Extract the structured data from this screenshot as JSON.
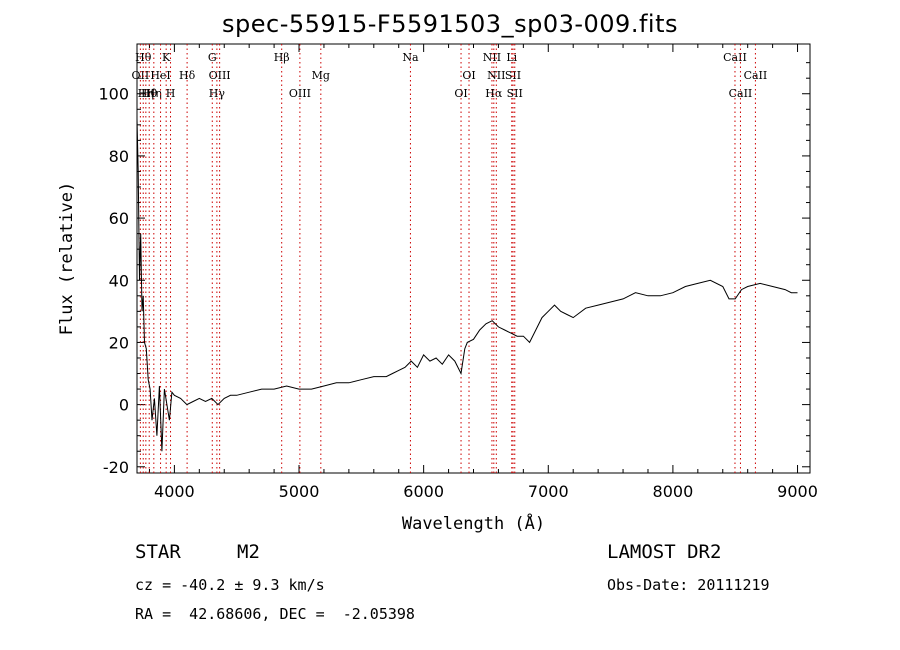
{
  "header": {
    "title": "spec-55915-F5591503_sp03-009.fits"
  },
  "info": {
    "class_label": "STAR",
    "subclass": "M2",
    "survey": "LAMOST DR2",
    "cz": "cz = -40.2 ± 9.3 km/s",
    "obs_date": "Obs-Date: 20111219",
    "radec": "RA =  42.68606, DEC =  -2.05398"
  },
  "chart_data": {
    "type": "line",
    "title": "spec-55915-F5591503_sp03-009.fits",
    "xlabel": "Wavelength (Å)",
    "ylabel": "Flux (relative)",
    "xlim": [
      3700,
      9100
    ],
    "ylim": [
      -22,
      116
    ],
    "xticks": [
      4000,
      5000,
      6000,
      7000,
      8000,
      9000
    ],
    "yticks": [
      -20,
      0,
      20,
      40,
      60,
      80,
      100
    ],
    "grid": false,
    "line_color": "#000000",
    "marker_color": "#cc0000",
    "series": [
      {
        "x": [
          3700,
          3710,
          3720,
          3730,
          3740,
          3750,
          3760,
          3775,
          3790,
          3805,
          3820,
          3840,
          3860,
          3880,
          3900,
          3920,
          3940,
          3960,
          3980,
          4000,
          4050,
          4100,
          4150,
          4200,
          4250,
          4300,
          4350,
          4400,
          4450,
          4500,
          4600,
          4700,
          4800,
          4900,
          5000,
          5100,
          5200,
          5300,
          5400,
          5500,
          5600,
          5700,
          5750,
          5800,
          5850,
          5900,
          5950,
          6000,
          6050,
          6100,
          6150,
          6200,
          6250,
          6300,
          6330,
          6350,
          6400,
          6450,
          6500,
          6550,
          6600,
          6650,
          6700,
          6750,
          6800,
          6850,
          6900,
          6950,
          7000,
          7050,
          7100,
          7150,
          7200,
          7300,
          7400,
          7500,
          7600,
          7700,
          7800,
          7900,
          8000,
          8100,
          8200,
          8300,
          8400,
          8450,
          8500,
          8550,
          8600,
          8700,
          8800,
          8900,
          8950,
          9000
        ],
        "y": [
          92,
          75,
          40,
          55,
          30,
          35,
          20,
          18,
          8,
          5,
          -5,
          2,
          -10,
          6,
          -15,
          5,
          0,
          -5,
          4,
          3,
          2,
          0,
          1,
          2,
          1,
          2,
          0,
          2,
          3,
          3,
          4,
          5,
          5,
          6,
          5,
          5,
          6,
          7,
          7,
          8,
          9,
          9,
          10,
          11,
          12,
          14,
          12,
          16,
          14,
          15,
          13,
          16,
          14,
          10,
          18,
          20,
          21,
          24,
          26,
          27,
          25,
          24,
          23,
          22,
          22,
          20,
          24,
          28,
          30,
          32,
          30,
          29,
          28,
          31,
          32,
          33,
          34,
          36,
          35,
          35,
          36,
          38,
          39,
          40,
          38,
          34,
          34,
          37,
          38,
          39,
          38,
          37,
          36,
          36
        ]
      }
    ],
    "line_markers": [
      {
        "wl": 3727,
        "label": "OII",
        "row": 2
      },
      {
        "wl": 3750,
        "label": "Hθ",
        "row": 1
      },
      {
        "wl": 3771,
        "label": "Hη",
        "row": 3
      },
      {
        "wl": 3798,
        "label": "Hθ",
        "row": 3
      },
      {
        "wl": 3835,
        "label": "Hη",
        "row": 3
      },
      {
        "wl": 3889,
        "label": "HeI",
        "row": 2
      },
      {
        "wl": 3934,
        "label": "K",
        "row": 1
      },
      {
        "wl": 3969,
        "label": "H",
        "row": 3
      },
      {
        "wl": 4102,
        "label": "Hδ",
        "row": 2
      },
      {
        "wl": 4304,
        "label": "G",
        "row": 1
      },
      {
        "wl": 4341,
        "label": "Hγ",
        "row": 3
      },
      {
        "wl": 4363,
        "label": "OIII",
        "row": 2
      },
      {
        "wl": 4861,
        "label": "Hβ",
        "row": 1
      },
      {
        "wl": 5007,
        "label": "OIII",
        "row": 3
      },
      {
        "wl": 5175,
        "label": "Mg",
        "row": 2
      },
      {
        "wl": 5894,
        "label": "Na",
        "row": 1
      },
      {
        "wl": 6300,
        "label": "OI",
        "row": 3
      },
      {
        "wl": 6364,
        "label": "OI",
        "row": 2
      },
      {
        "wl": 6548,
        "label": "NII",
        "row": 1
      },
      {
        "wl": 6563,
        "label": "Hα",
        "row": 3
      },
      {
        "wl": 6583,
        "label": "NII",
        "row": 2
      },
      {
        "wl": 6707,
        "label": "Li",
        "row": 1
      },
      {
        "wl": 6717,
        "label": "SII",
        "row": 2
      },
      {
        "wl": 6731,
        "label": "SII",
        "row": 3
      },
      {
        "wl": 8498,
        "label": "CaII",
        "row": 1
      },
      {
        "wl": 8542,
        "label": "CaII",
        "row": 3
      },
      {
        "wl": 8662,
        "label": "CaII",
        "row": 2
      }
    ]
  }
}
